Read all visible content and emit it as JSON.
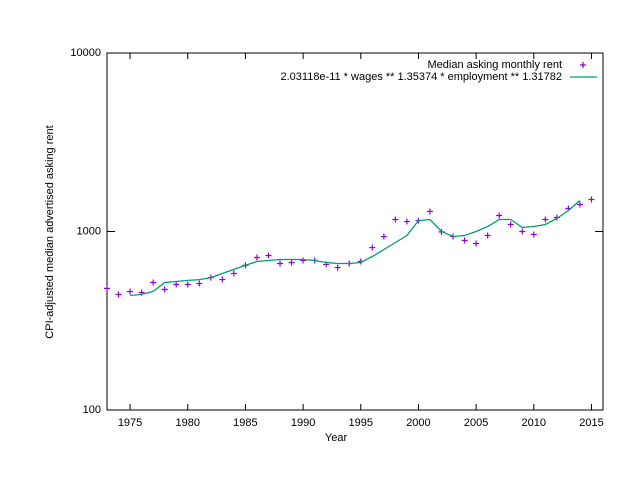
{
  "chart_data": {
    "type": "scatter",
    "x_label": "Year",
    "y_label": "CPI-adjusted median advertised asking rent",
    "xlim": [
      1973,
      2016
    ],
    "xticks": [
      1975,
      1980,
      1985,
      1990,
      1995,
      2000,
      2005,
      2010,
      2015
    ],
    "ylim": [
      100,
      10000
    ],
    "yticks": [
      100,
      1000,
      10000
    ],
    "log_y": true,
    "grid": false,
    "legend": "top-right",
    "series": [
      {
        "name": "Median asking monthly rent",
        "color": "#9400d3",
        "style": "points",
        "x": [
          1973,
          1974,
          1975,
          1976,
          1977,
          1978,
          1979,
          1980,
          1981,
          1982,
          1983,
          1984,
          1985,
          1986,
          1987,
          1988,
          1989,
          1990,
          1991,
          1992,
          1993,
          1994,
          1995,
          1996,
          1997,
          1998,
          1999,
          2000,
          2001,
          2002,
          2003,
          2004,
          2005,
          2006,
          2007,
          2008,
          2009,
          2010,
          2011,
          2012,
          2013,
          2014,
          2015
        ],
        "values": [
          480,
          444,
          461,
          455,
          518,
          473,
          505,
          505,
          511,
          552,
          538,
          582,
          646,
          715,
          734,
          662,
          670,
          688,
          688,
          654,
          628,
          662,
          679,
          813,
          937,
          1167,
          1137,
          1150,
          1295,
          995,
          937,
          890,
          857,
          950,
          1229,
          1094,
          1000,
          962,
          1167,
          1198,
          1345,
          1416,
          1511
        ]
      },
      {
        "name": "2.03118e-11 * wages ** 1.35374 * employment ** 1.31782",
        "color": "#009e73",
        "style": "line",
        "x": [
          1975,
          1976,
          1977,
          1978,
          1979,
          1980,
          1981,
          1982,
          1983,
          1984,
          1985,
          1986,
          1987,
          1988,
          1989,
          1990,
          1991,
          1992,
          1993,
          1994,
          1995,
          1996,
          1997,
          1998,
          1999,
          2000,
          2001,
          2002,
          2003,
          2004,
          2005,
          2006,
          2007,
          2008,
          2009,
          2010,
          2011,
          2012,
          2013,
          2014
        ],
        "values": [
          438,
          444,
          461,
          518,
          525,
          532,
          538,
          552,
          582,
          613,
          646,
          679,
          688,
          697,
          697,
          697,
          688,
          670,
          662,
          662,
          670,
          724,
          792,
          868,
          950,
          1150,
          1167,
          1000,
          937,
          950,
          1000,
          1067,
          1167,
          1167,
          1053,
          1067,
          1094,
          1183,
          1311,
          1492
        ]
      }
    ]
  }
}
